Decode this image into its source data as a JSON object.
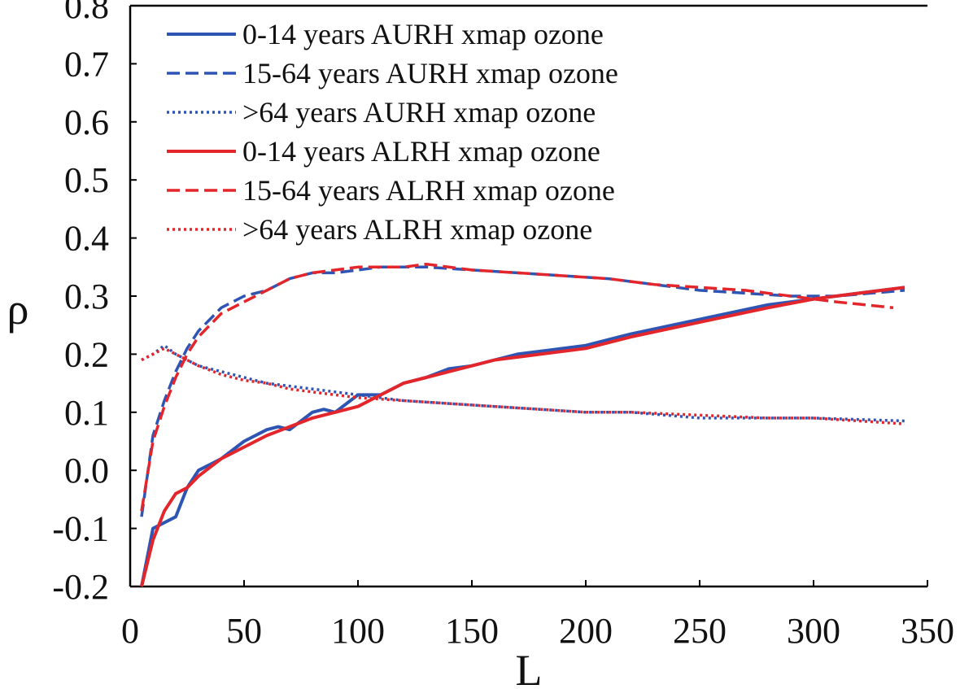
{
  "chart_data": {
    "type": "line",
    "title": "",
    "xlabel": "L",
    "ylabel": "ρ",
    "xlim": [
      0,
      350
    ],
    "ylim": [
      -0.2,
      0.8
    ],
    "xticks": [
      "0",
      "50",
      "100",
      "150",
      "200",
      "250",
      "300",
      "350"
    ],
    "xtick_values": [
      0,
      50,
      100,
      150,
      200,
      250,
      300,
      350
    ],
    "yticks": [
      "-0.2",
      "-0.1",
      "0.0",
      "0.1",
      "0.2",
      "0.3",
      "0.4",
      "0.5",
      "0.6",
      "0.7",
      "0.8"
    ],
    "ytick_values": [
      -0.2,
      -0.1,
      0.0,
      0.1,
      0.2,
      0.3,
      0.4,
      0.5,
      0.6,
      0.7,
      0.8
    ],
    "grid": false,
    "legend_position": "top-left",
    "colors": {
      "blue": "#2f55b4",
      "red": "#e3262b"
    },
    "series": [
      {
        "name": "0-14 years AURH xmap ozone",
        "color": "#2f55b4",
        "style": "solid",
        "x": [
          5,
          10,
          20,
          25,
          30,
          35,
          40,
          50,
          60,
          65,
          70,
          80,
          85,
          90,
          100,
          110,
          120,
          130,
          140,
          150,
          160,
          170,
          180,
          200,
          220,
          250,
          280,
          300,
          320,
          340
        ],
        "y": [
          -0.2,
          -0.1,
          -0.08,
          -0.03,
          0.0,
          0.01,
          0.02,
          0.05,
          0.07,
          0.075,
          0.07,
          0.1,
          0.105,
          0.1,
          0.13,
          0.13,
          0.15,
          0.16,
          0.175,
          0.18,
          0.19,
          0.2,
          0.205,
          0.215,
          0.235,
          0.26,
          0.285,
          0.295,
          0.305,
          0.315
        ]
      },
      {
        "name": "15-64 years AURH xmap ozone",
        "color": "#2f55b4",
        "style": "dashed",
        "x": [
          5,
          10,
          15,
          20,
          25,
          30,
          35,
          40,
          50,
          60,
          70,
          80,
          90,
          100,
          110,
          120,
          130,
          150,
          170,
          190,
          210,
          230,
          250,
          270,
          290,
          310,
          340
        ],
        "y": [
          -0.08,
          0.06,
          0.12,
          0.17,
          0.21,
          0.24,
          0.26,
          0.28,
          0.3,
          0.31,
          0.33,
          0.34,
          0.34,
          0.345,
          0.35,
          0.35,
          0.35,
          0.345,
          0.34,
          0.335,
          0.33,
          0.32,
          0.31,
          0.305,
          0.3,
          0.3,
          0.31
        ]
      },
      {
        "name": ">64 years AURH xmap ozone",
        "color": "#2f55b4",
        "style": "dotted",
        "x": [
          5,
          10,
          15,
          20,
          30,
          40,
          50,
          60,
          70,
          80,
          90,
          100,
          120,
          140,
          160,
          180,
          200,
          220,
          250,
          280,
          300,
          340
        ],
        "y": [
          0.19,
          0.2,
          0.215,
          0.2,
          0.18,
          0.17,
          0.16,
          0.15,
          0.145,
          0.14,
          0.135,
          0.13,
          0.12,
          0.115,
          0.11,
          0.105,
          0.1,
          0.1,
          0.09,
          0.09,
          0.09,
          0.085
        ]
      },
      {
        "name": "0-14 years ALRH xmap ozone",
        "color": "#e3262b",
        "style": "solid",
        "x": [
          5,
          10,
          15,
          20,
          25,
          30,
          40,
          50,
          60,
          70,
          80,
          90,
          100,
          110,
          120,
          130,
          140,
          150,
          160,
          170,
          180,
          200,
          220,
          250,
          280,
          300,
          320,
          340
        ],
        "y": [
          -0.2,
          -0.12,
          -0.07,
          -0.04,
          -0.03,
          -0.01,
          0.02,
          0.04,
          0.06,
          0.075,
          0.09,
          0.1,
          0.11,
          0.13,
          0.15,
          0.16,
          0.17,
          0.18,
          0.19,
          0.195,
          0.2,
          0.21,
          0.23,
          0.255,
          0.28,
          0.295,
          0.305,
          0.315
        ]
      },
      {
        "name": "15-64 years ALRH xmap ozone",
        "color": "#e3262b",
        "style": "dashed",
        "x": [
          5,
          10,
          15,
          20,
          25,
          30,
          35,
          40,
          50,
          60,
          70,
          80,
          90,
          100,
          110,
          120,
          130,
          150,
          170,
          190,
          210,
          230,
          250,
          270,
          290,
          310,
          335
        ],
        "y": [
          -0.07,
          0.05,
          0.11,
          0.16,
          0.2,
          0.23,
          0.25,
          0.27,
          0.29,
          0.31,
          0.33,
          0.34,
          0.345,
          0.35,
          0.35,
          0.35,
          0.355,
          0.345,
          0.34,
          0.335,
          0.33,
          0.32,
          0.315,
          0.31,
          0.3,
          0.29,
          0.28
        ]
      },
      {
        "name": ">64 years ALRH xmap ozone",
        "color": "#e3262b",
        "style": "dotted",
        "x": [
          5,
          10,
          15,
          20,
          30,
          40,
          50,
          60,
          70,
          80,
          90,
          100,
          120,
          140,
          160,
          180,
          200,
          220,
          250,
          280,
          300,
          340
        ],
        "y": [
          0.19,
          0.2,
          0.21,
          0.2,
          0.18,
          0.165,
          0.155,
          0.15,
          0.14,
          0.135,
          0.13,
          0.125,
          0.12,
          0.115,
          0.11,
          0.105,
          0.1,
          0.1,
          0.095,
          0.09,
          0.09,
          0.08
        ]
      }
    ]
  }
}
